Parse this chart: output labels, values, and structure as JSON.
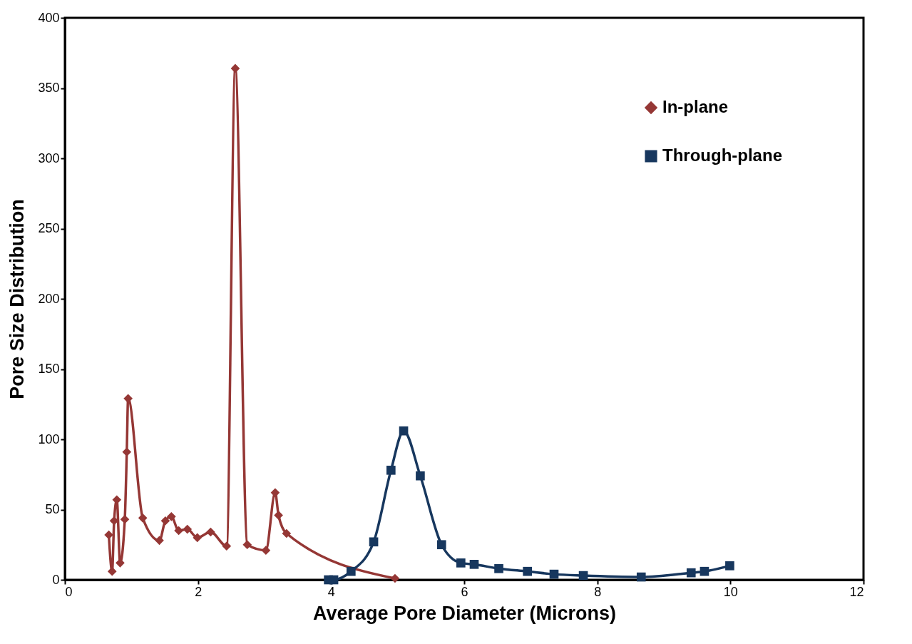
{
  "chart_data": {
    "type": "line",
    "xlabel": "Average Pore Diameter (Microns)",
    "ylabel": "Pore Size Distribution",
    "xlim": [
      0,
      12
    ],
    "xticks": [
      0,
      2,
      4,
      6,
      8,
      10,
      12
    ],
    "ylim": [
      0,
      400
    ],
    "yticks": [
      0,
      50,
      100,
      150,
      200,
      250,
      300,
      350,
      400
    ],
    "grid": false,
    "legend": "top right",
    "series": [
      {
        "name": "In-plane",
        "color": "#953735",
        "marker": "diamond",
        "x": [
          0.66,
          0.71,
          0.74,
          0.78,
          0.83,
          0.9,
          0.93,
          0.95,
          1.17,
          1.42,
          1.51,
          1.6,
          1.71,
          1.84,
          1.99,
          2.19,
          2.43,
          2.56,
          2.74,
          3.02,
          3.16,
          3.21,
          3.33,
          4.96
        ],
        "values": [
          32,
          6,
          42,
          57,
          12,
          43,
          91,
          129,
          44,
          28,
          42,
          45,
          35,
          36,
          30,
          34,
          24,
          364,
          25,
          21,
          62,
          46,
          33,
          1
        ]
      },
      {
        "name": "Through-plane",
        "color": "#17375e",
        "marker": "square",
        "x": [
          3.96,
          4.04,
          4.3,
          4.64,
          4.9,
          5.09,
          5.34,
          5.66,
          5.95,
          6.15,
          6.52,
          6.95,
          7.35,
          7.79,
          8.66,
          9.41,
          9.61,
          9.99
        ],
        "values": [
          0,
          0,
          6,
          27,
          78,
          106,
          74,
          25,
          12,
          11,
          8,
          6,
          4,
          3,
          2,
          5,
          6,
          10
        ]
      }
    ]
  }
}
